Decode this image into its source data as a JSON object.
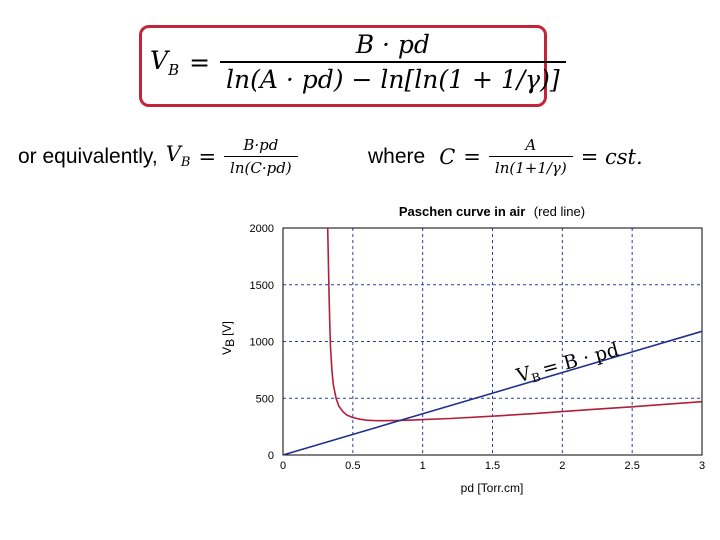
{
  "formula_box": {
    "lhs": "V",
    "lhs_sub": "B",
    "equals": "=",
    "numerator": "B · pd",
    "denominator": "ln(A · pd)  − ln[ln(1 + 1/γ)]",
    "border_color": "#c4243a"
  },
  "equivalent": {
    "prefix": "or equivalently,",
    "lhs": "V",
    "lhs_sub": "B",
    "equals": "=",
    "numerator": "B·pd",
    "denominator": "ln(C·pd)"
  },
  "where": {
    "prefix": "where",
    "lhs": "C",
    "equals": "=",
    "numerator": "A",
    "denominator": "ln(1+1/γ)",
    "rhs": "= cst."
  },
  "chart_data": {
    "type": "line",
    "title": "Paschen curve in air",
    "title_note": "(red line)",
    "xlabel": "pd [Torr.cm]",
    "ylabel": "V",
    "ylabel_sub": "B",
    "ylabel_unit": "[V]",
    "xlim": [
      0,
      3
    ],
    "ylim": [
      0,
      2000
    ],
    "x_ticks": [
      "0",
      "0.5",
      "1",
      "1.5",
      "2",
      "2.5",
      "3"
    ],
    "y_ticks": [
      "0",
      "500",
      "1000",
      "1500",
      "2000"
    ],
    "grid": true,
    "series": [
      {
        "color": "#b0203a",
        "x": [
          0.32,
          0.325,
          0.33,
          0.335,
          0.34,
          0.35,
          0.36,
          0.38,
          0.4,
          0.43,
          0.46,
          0.5,
          0.55,
          0.6,
          0.65,
          0.7,
          0.8,
          0.9,
          1.0,
          1.2,
          1.5,
          1.8,
          2.0,
          2.2,
          2.5,
          2.8,
          3.0
        ],
        "y": [
          2000,
          1700,
          1400,
          1150,
          950,
          750,
          620,
          500,
          430,
          380,
          350,
          330,
          315,
          307,
          303,
          302,
          303,
          307,
          312,
          322,
          342,
          365,
          382,
          400,
          425,
          452,
          470
        ]
      },
      {
        "color": "#1f2f8a",
        "x": [
          0,
          3
        ],
        "y": [
          0,
          1090
        ]
      }
    ],
    "annotation": {
      "text": "= B · pd",
      "lead": "V",
      "lead_sub": "B",
      "x": 2.05,
      "y": 760,
      "rotation_deg": -15
    }
  }
}
